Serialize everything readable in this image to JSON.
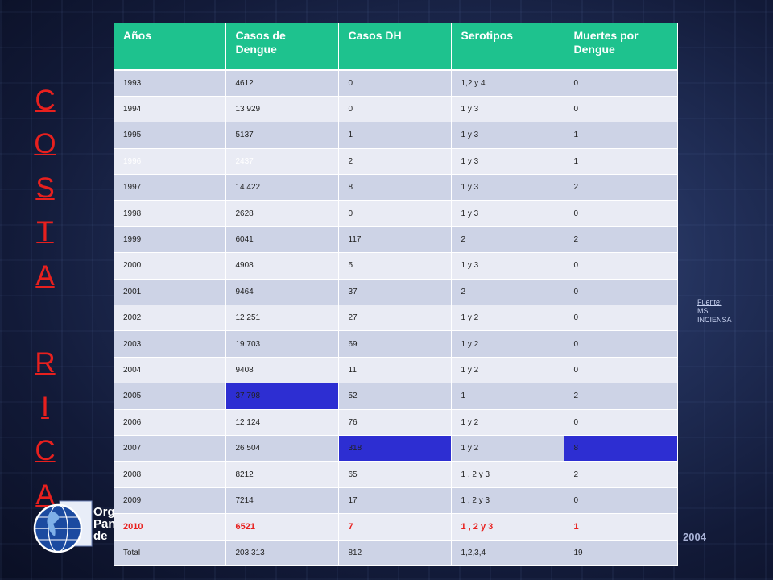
{
  "side_title": [
    "C",
    "O",
    "S",
    "T",
    "A",
    " ",
    "R",
    "I",
    "C",
    "A"
  ],
  "org_lines": [
    "Org",
    "Pan",
    "de"
  ],
  "footer_year": "2004",
  "fuente_lines": [
    "Fuente:",
    "MS",
    "INCIENSA"
  ],
  "table": {
    "headers": [
      "Años",
      "Casos de Dengue",
      "Casos DH",
      "Serotipos",
      "Muertes por Dengue"
    ],
    "rows": [
      [
        "1993",
        "4612",
        "0",
        "1,2 y 4",
        "0"
      ],
      [
        "1994",
        "13 929",
        "0",
        "1 y 3",
        "0"
      ],
      [
        "1995",
        "5137",
        "1",
        "1 y 3",
        "1"
      ],
      [
        "1996",
        "2437",
        "2",
        "1 y 3",
        "1"
      ],
      [
        "1997",
        "14 422",
        "8",
        "1 y 3",
        "2"
      ],
      [
        "1998",
        "2628",
        "0",
        "1 y 3",
        "0"
      ],
      [
        "1999",
        "6041",
        "117",
        "2",
        "2"
      ],
      [
        "2000",
        "4908",
        "5",
        "1 y 3",
        "0"
      ],
      [
        "2001",
        "9464",
        "37",
        "2",
        "0"
      ],
      [
        "2002",
        "12 251",
        "27",
        "1 y 2",
        "0"
      ],
      [
        "2003",
        "19 703",
        "69",
        "1 y 2",
        "0"
      ],
      [
        "2004",
        "9408",
        "11",
        "1 y 2",
        "0"
      ],
      [
        "2005",
        "37 798",
        "52",
        "1",
        "2"
      ],
      [
        "2006",
        "12 124",
        "76",
        "1 y 2",
        "0"
      ],
      [
        "2007",
        "26 504",
        "318",
        "1 y 2",
        "8"
      ],
      [
        "2008",
        "8212",
        "65",
        "1 , 2 y 3",
        "2"
      ],
      [
        "2009",
        "7214",
        "17",
        "1 , 2 y 3",
        "0"
      ],
      [
        "2010",
        "6521",
        "7",
        "1 , 2 y 3",
        "1"
      ],
      [
        "Total",
        "203 313",
        "812",
        "1,2,3,4",
        "19"
      ]
    ]
  },
  "colors": {
    "header_bg": "#1ec28e",
    "highlight_cell": "#2d2ed2",
    "accent_red": "#e8201e"
  }
}
